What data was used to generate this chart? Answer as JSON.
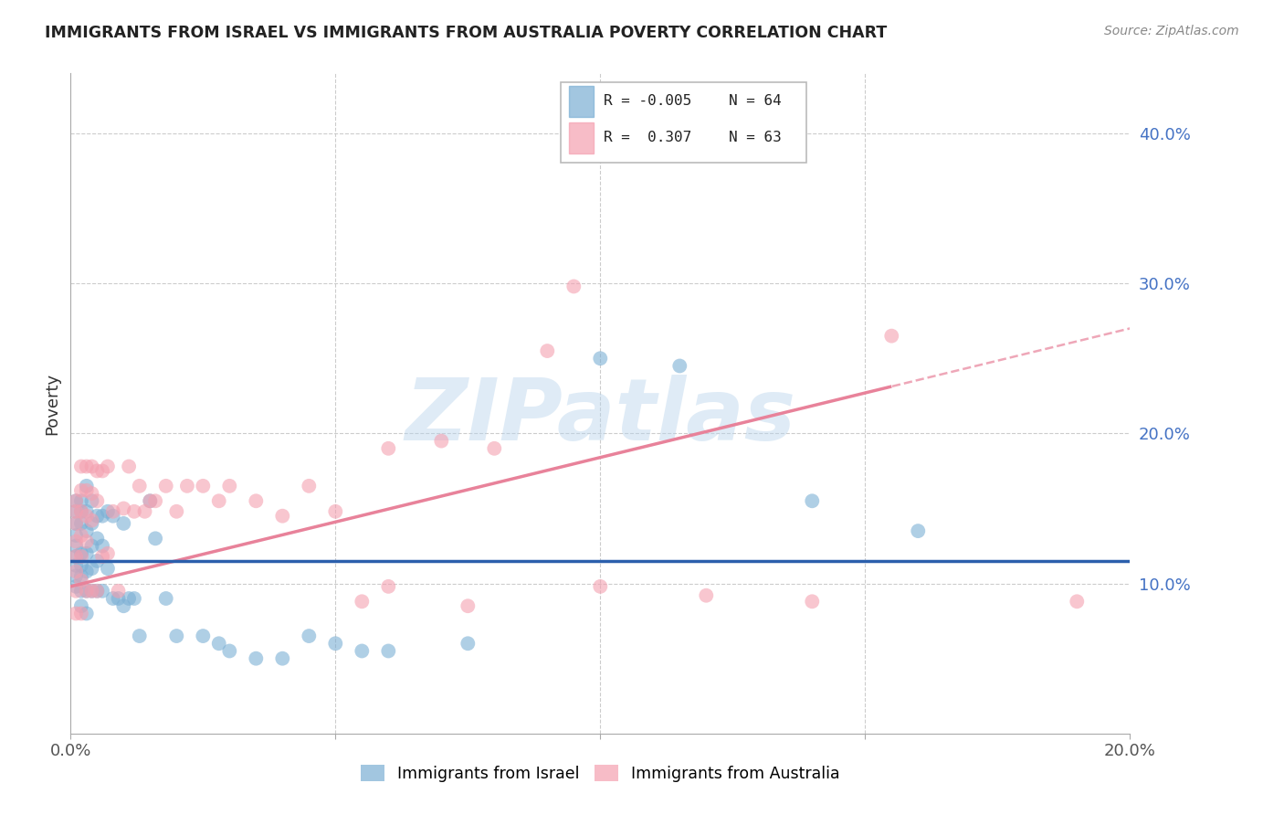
{
  "title": "IMMIGRANTS FROM ISRAEL VS IMMIGRANTS FROM AUSTRALIA POVERTY CORRELATION CHART",
  "source": "Source: ZipAtlas.com",
  "ylabel": "Poverty",
  "x_min": 0.0,
  "x_max": 0.2,
  "y_min": 0.0,
  "y_max": 0.44,
  "background_color": "#ffffff",
  "israel_color": "#7bafd4",
  "australia_color": "#f4a0b0",
  "israel_label": "Immigrants from Israel",
  "australia_label": "Immigrants from Australia",
  "legend_R_israel": "-0.005",
  "legend_N_israel": "64",
  "legend_R_australia": " 0.307",
  "legend_N_australia": "63",
  "watermark": "ZIPatlas",
  "watermark_color": "#b8d4ec",
  "israel_trend_color": "#2b5fac",
  "australia_trend_color": "#e8829a",
  "grid_color": "#cccccc",
  "israel_trend_y0": 0.115,
  "israel_trend_y1": 0.115,
  "australia_trend_y0": 0.098,
  "australia_trend_y1": 0.27,
  "australia_trend_x_solid_end": 0.155,
  "israel_points_x": [
    0.001,
    0.001,
    0.001,
    0.001,
    0.001,
    0.001,
    0.001,
    0.001,
    0.001,
    0.002,
    0.002,
    0.002,
    0.002,
    0.002,
    0.002,
    0.002,
    0.002,
    0.003,
    0.003,
    0.003,
    0.003,
    0.003,
    0.003,
    0.003,
    0.004,
    0.004,
    0.004,
    0.004,
    0.004,
    0.005,
    0.005,
    0.005,
    0.005,
    0.006,
    0.006,
    0.006,
    0.007,
    0.007,
    0.008,
    0.008,
    0.009,
    0.01,
    0.01,
    0.011,
    0.012,
    0.013,
    0.015,
    0.016,
    0.018,
    0.02,
    0.025,
    0.028,
    0.03,
    0.035,
    0.04,
    0.045,
    0.05,
    0.055,
    0.06,
    0.075,
    0.1,
    0.115,
    0.14,
    0.16
  ],
  "israel_points_y": [
    0.155,
    0.148,
    0.14,
    0.132,
    0.125,
    0.118,
    0.112,
    0.105,
    0.098,
    0.155,
    0.148,
    0.14,
    0.12,
    0.112,
    0.105,
    0.095,
    0.085,
    0.165,
    0.148,
    0.135,
    0.12,
    0.108,
    0.095,
    0.08,
    0.155,
    0.14,
    0.125,
    0.11,
    0.095,
    0.145,
    0.13,
    0.115,
    0.095,
    0.145,
    0.125,
    0.095,
    0.148,
    0.11,
    0.145,
    0.09,
    0.09,
    0.14,
    0.085,
    0.09,
    0.09,
    0.065,
    0.155,
    0.13,
    0.09,
    0.065,
    0.065,
    0.06,
    0.055,
    0.05,
    0.05,
    0.065,
    0.06,
    0.055,
    0.055,
    0.06,
    0.25,
    0.245,
    0.155,
    0.135
  ],
  "australia_points_x": [
    0.001,
    0.001,
    0.001,
    0.001,
    0.001,
    0.001,
    0.001,
    0.001,
    0.002,
    0.002,
    0.002,
    0.002,
    0.002,
    0.002,
    0.002,
    0.003,
    0.003,
    0.003,
    0.003,
    0.003,
    0.004,
    0.004,
    0.004,
    0.004,
    0.005,
    0.005,
    0.005,
    0.006,
    0.006,
    0.007,
    0.007,
    0.008,
    0.009,
    0.01,
    0.011,
    0.012,
    0.013,
    0.014,
    0.015,
    0.016,
    0.018,
    0.02,
    0.022,
    0.025,
    0.028,
    0.03,
    0.035,
    0.04,
    0.045,
    0.05,
    0.055,
    0.06,
    0.075,
    0.1,
    0.12,
    0.14,
    0.155,
    0.095,
    0.19,
    0.06,
    0.07,
    0.08,
    0.09
  ],
  "australia_points_y": [
    0.155,
    0.148,
    0.14,
    0.128,
    0.118,
    0.108,
    0.095,
    0.08,
    0.178,
    0.162,
    0.148,
    0.132,
    0.118,
    0.102,
    0.08,
    0.178,
    0.162,
    0.145,
    0.128,
    0.095,
    0.178,
    0.16,
    0.142,
    0.095,
    0.175,
    0.155,
    0.095,
    0.175,
    0.118,
    0.178,
    0.12,
    0.148,
    0.095,
    0.15,
    0.178,
    0.148,
    0.165,
    0.148,
    0.155,
    0.155,
    0.165,
    0.148,
    0.165,
    0.165,
    0.155,
    0.165,
    0.155,
    0.145,
    0.165,
    0.148,
    0.088,
    0.098,
    0.085,
    0.098,
    0.092,
    0.088,
    0.265,
    0.298,
    0.088,
    0.19,
    0.195,
    0.19,
    0.255
  ]
}
